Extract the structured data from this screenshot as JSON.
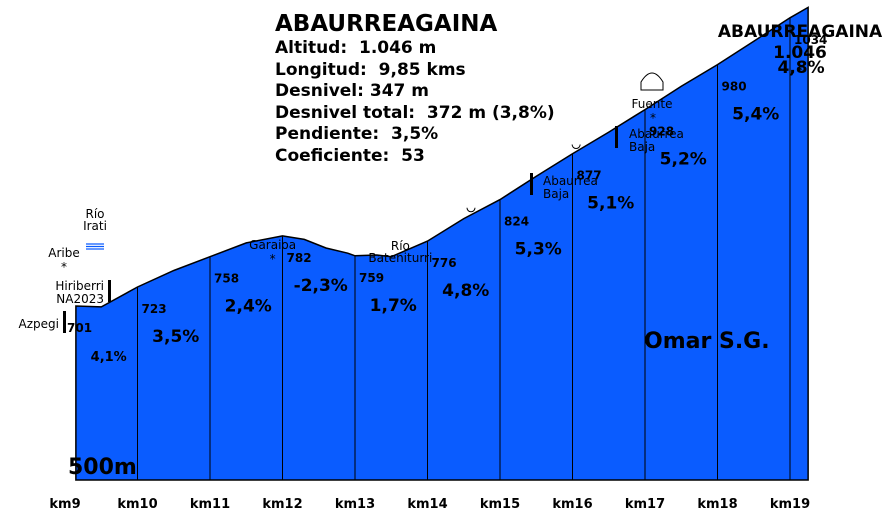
{
  "info": {
    "title": "ABAURREAGAINA",
    "rows": [
      {
        "label": "Altitud:",
        "value": "1.046 m"
      },
      {
        "label": "Longitud:",
        "value": "9,85 kms"
      },
      {
        "label": "Desnivel:",
        "value": "347 m"
      },
      {
        "label": "Desnivel total:",
        "value": "372 m (3,8%)"
      },
      {
        "label": "Pendiente:",
        "value": "3,5%"
      },
      {
        "label": "Coeficiente:",
        "value": "53"
      }
    ]
  },
  "summit": {
    "name": "ABAURREAGAINA",
    "altitude": "1.046",
    "star": "*"
  },
  "author": "Omar S.G.",
  "base_label": "500m",
  "colors": {
    "fill": "#0a5cff",
    "stroke": "#000000",
    "background": "#ffffff",
    "text": "#000000"
  },
  "chart_data": {
    "type": "area",
    "title": "ABAURREAGAINA",
    "xlabel": "",
    "ylabel": "",
    "y_base": 500,
    "ylim": [
      500,
      1046
    ],
    "grid": false,
    "x_ticks": [
      "km9",
      "km10",
      "km11",
      "km12",
      "km13",
      "km14",
      "km15",
      "km16",
      "km17",
      "km18",
      "km19"
    ],
    "x_tick_values": [
      9,
      10,
      11,
      12,
      13,
      14,
      15,
      16,
      17,
      18,
      19
    ],
    "profile": [
      {
        "km": 9.15,
        "alt": 701
      },
      {
        "km": 9.5,
        "alt": 700
      },
      {
        "km": 10.0,
        "alt": 723
      },
      {
        "km": 10.5,
        "alt": 742
      },
      {
        "km": 11.0,
        "alt": 758
      },
      {
        "km": 11.5,
        "alt": 774
      },
      {
        "km": 12.0,
        "alt": 782
      },
      {
        "km": 12.3,
        "alt": 778
      },
      {
        "km": 12.6,
        "alt": 768
      },
      {
        "km": 12.9,
        "alt": 762
      },
      {
        "km": 13.0,
        "alt": 759
      },
      {
        "km": 13.3,
        "alt": 760
      },
      {
        "km": 13.5,
        "alt": 758
      },
      {
        "km": 14.0,
        "alt": 776
      },
      {
        "km": 14.5,
        "alt": 802
      },
      {
        "km": 15.0,
        "alt": 824
      },
      {
        "km": 15.5,
        "alt": 851
      },
      {
        "km": 16.0,
        "alt": 877
      },
      {
        "km": 16.5,
        "alt": 902
      },
      {
        "km": 17.0,
        "alt": 928
      },
      {
        "km": 17.5,
        "alt": 955
      },
      {
        "km": 18.0,
        "alt": 980
      },
      {
        "km": 18.5,
        "alt": 1007
      },
      {
        "km": 19.0,
        "alt": 1034
      },
      {
        "km": 19.25,
        "alt": 1046
      }
    ],
    "km_points": [
      {
        "km": 9,
        "alt": "701"
      },
      {
        "km": 10,
        "alt": "723"
      },
      {
        "km": 11,
        "alt": "758"
      },
      {
        "km": 12,
        "alt": "782"
      },
      {
        "km": 13,
        "alt": "759"
      },
      {
        "km": 14,
        "alt": "776"
      },
      {
        "km": 15,
        "alt": "824"
      },
      {
        "km": 16,
        "alt": "877"
      },
      {
        "km": 17,
        "alt": "928"
      },
      {
        "km": 18,
        "alt": "980"
      },
      {
        "km": 19,
        "alt": "1034"
      }
    ],
    "gradients": [
      {
        "km": 9,
        "text": "4,1%",
        "small": true
      },
      {
        "km": 10,
        "text": "3,5%"
      },
      {
        "km": 11,
        "text": "2,4%"
      },
      {
        "km": 12,
        "text": "-2,3%"
      },
      {
        "km": 13,
        "text": "1,7%"
      },
      {
        "km": 14,
        "text": "4,8%"
      },
      {
        "km": 15,
        "text": "5,3%"
      },
      {
        "km": 16,
        "text": "5,1%"
      },
      {
        "km": 17,
        "text": "5,2%"
      },
      {
        "km": 18,
        "text": "5,4%"
      },
      {
        "km": 19,
        "text": "4,8%"
      }
    ],
    "annotations": [
      {
        "km": 9.0,
        "lines": [
          "Azpegi"
        ],
        "symbol": "bar"
      },
      {
        "km": 9.4,
        "lines": [
          "Hiriberri",
          "NA2023"
        ],
        "symbol": "bar"
      },
      {
        "km": 9.2,
        "lines": [
          "Aribe"
        ],
        "symbol": "star"
      },
      {
        "km": 9.5,
        "lines": [
          "Río",
          "Irati"
        ],
        "symbol": "river"
      },
      {
        "km": 11.85,
        "lines": [
          "Garaioa"
        ],
        "symbol": "star"
      },
      {
        "km": 13.35,
        "lines": [
          "Río",
          "Bateniturri"
        ],
        "symbol": "river"
      },
      {
        "km": 14.6,
        "lines": [],
        "symbol": "curve"
      },
      {
        "km": 16.05,
        "lines": [],
        "symbol": "curve"
      },
      {
        "km": 15.9,
        "lines": [
          "Abaurrea",
          "Baja"
        ],
        "symbol": "bar"
      },
      {
        "km": 17.15,
        "lines": [
          "Abaurrea",
          "Baja"
        ],
        "symbol": "bar"
      },
      {
        "km": 17.2,
        "lines": [
          "Fuente"
        ],
        "symbol": "fountain"
      }
    ]
  }
}
